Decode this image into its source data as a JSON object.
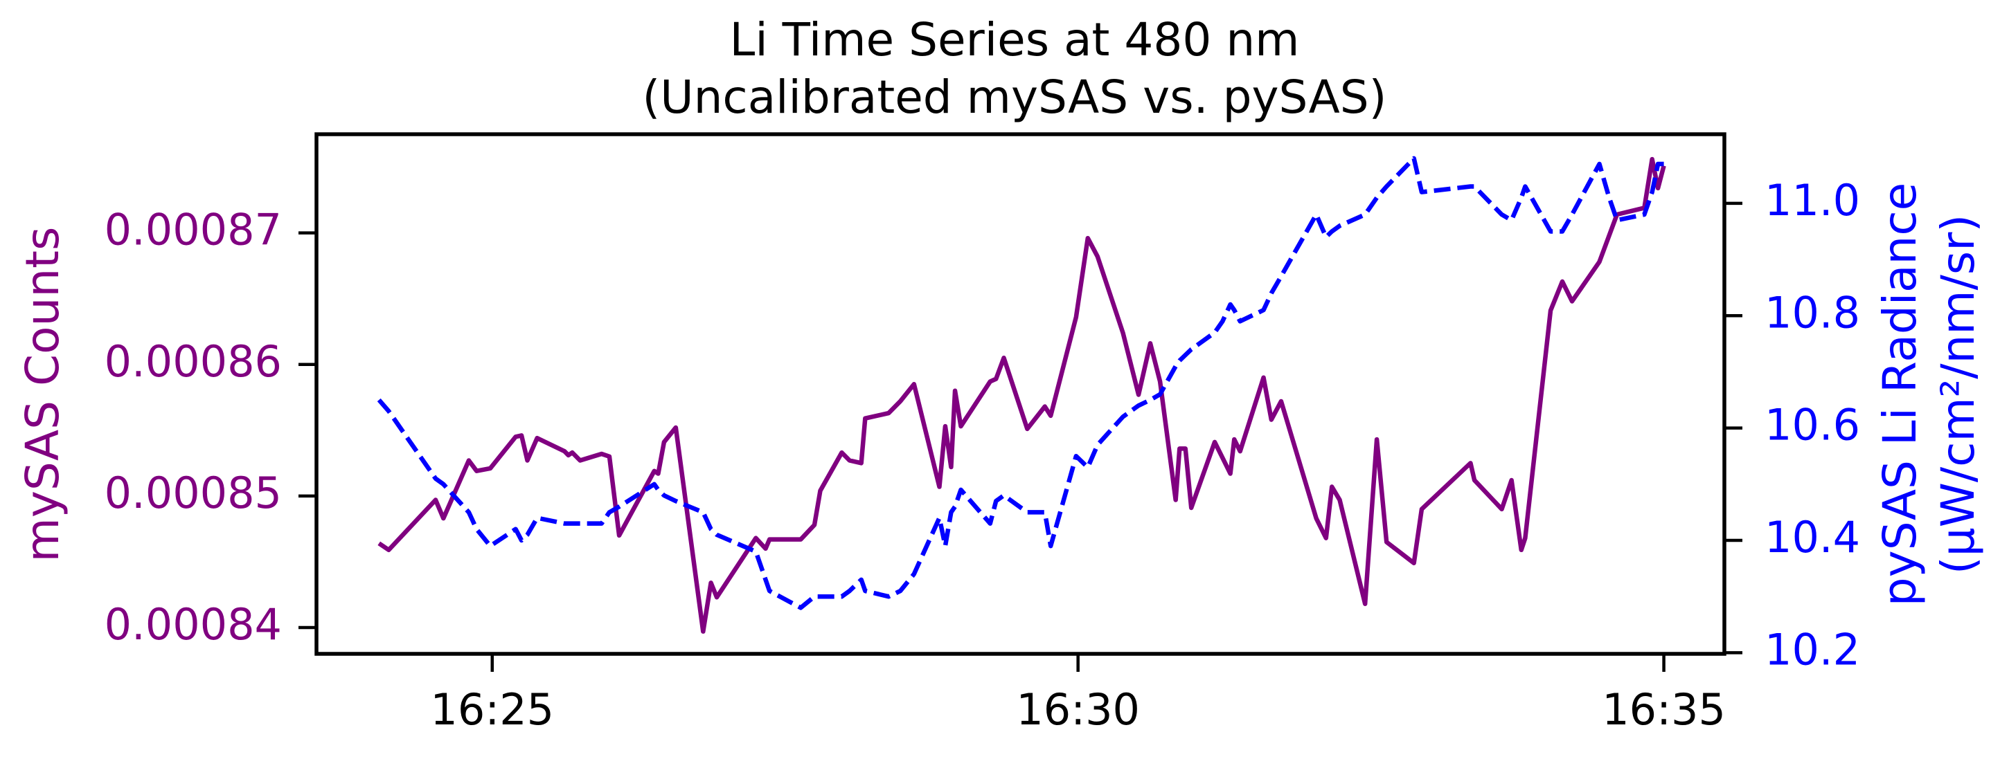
{
  "chart_data": {
    "type": "line",
    "title": "Li Time Series at 480 nm",
    "subtitle": "(Uncalibrated mySAS vs. pySAS)",
    "ylabel": "mySAS Counts",
    "y2label": [
      "pySAS Li Radiance",
      "(μW/cm²/nm/sr)"
    ],
    "x": [
      "16:24:02",
      "16:24:07",
      "16:24:31",
      "16:24:35",
      "16:24:48",
      "16:24:52",
      "16:24:59",
      "16:25:12",
      "16:25:15",
      "16:25:18",
      "16:25:23",
      "16:25:37",
      "16:25:39",
      "16:25:41",
      "16:25:45",
      "16:25:56",
      "16:26:00",
      "16:26:05",
      "16:26:23",
      "16:26:25",
      "16:26:28",
      "16:26:34",
      "16:26:48",
      "16:26:52",
      "16:26:55",
      "16:27:15",
      "16:27:20",
      "16:27:22",
      "16:27:38",
      "16:27:45",
      "16:27:48",
      "16:27:59",
      "16:28:03",
      "16:28:09",
      "16:28:11",
      "16:28:23",
      "16:28:29",
      "16:28:36",
      "16:28:49",
      "16:28:52",
      "16:28:55",
      "16:28:57",
      "16:29:00",
      "16:29:15",
      "16:29:18",
      "16:29:22",
      "16:29:34",
      "16:29:43",
      "16:29:46",
      "16:29:59",
      "16:30:05",
      "16:30:10",
      "16:30:23",
      "16:30:31",
      "16:30:37",
      "16:30:42",
      "16:30:50",
      "16:30:52",
      "16:30:55",
      "16:30:58",
      "16:31:10",
      "16:31:14",
      "16:31:18",
      "16:31:20",
      "16:31:23",
      "16:31:35",
      "16:31:39",
      "16:31:44",
      "16:32:02",
      "16:32:07",
      "16:32:10",
      "16:32:14",
      "16:32:27",
      "16:32:33",
      "16:32:38",
      "16:32:52",
      "16:32:56",
      "16:33:21",
      "16:33:23",
      "16:33:37",
      "16:33:42",
      "16:33:47",
      "16:33:49",
      "16:34:02",
      "16:34:08",
      "16:34:13",
      "16:34:27",
      "16:34:32",
      "16:34:36",
      "16:34:50",
      "16:34:54",
      "16:34:57",
      "16:35:00"
    ],
    "series": [
      {
        "color": "#800080",
        "style": "solid",
        "axis": "y",
        "values": [
          0.0008464,
          0.0008459,
          0.0008497,
          0.0008483,
          0.0008527,
          0.0008519,
          0.0008521,
          0.0008545,
          0.0008546,
          0.0008527,
          0.0008544,
          0.0008534,
          0.0008531,
          0.0008533,
          0.0008527,
          0.0008532,
          0.000853,
          0.000847,
          0.0008519,
          0.0008517,
          0.0008541,
          0.0008552,
          0.0008397,
          0.0008434,
          0.0008423,
          0.0008468,
          0.000846,
          0.0008467,
          0.0008467,
          0.0008478,
          0.0008504,
          0.0008533,
          0.0008527,
          0.0008525,
          0.0008559,
          0.0008563,
          0.0008572,
          0.0008585,
          0.0008507,
          0.0008553,
          0.0008522,
          0.000858,
          0.0008553,
          0.0008587,
          0.0008589,
          0.0008605,
          0.0008551,
          0.0008568,
          0.0008561,
          0.0008636,
          0.0008696,
          0.0008682,
          0.0008624,
          0.0008577,
          0.0008616,
          0.0008587,
          0.0008497,
          0.0008536,
          0.0008536,
          0.0008491,
          0.0008541,
          0.0008529,
          0.0008517,
          0.0008543,
          0.0008534,
          0.000859,
          0.0008558,
          0.0008572,
          0.0008483,
          0.0008468,
          0.0008507,
          0.0008497,
          0.0008418,
          0.0008543,
          0.0008465,
          0.0008449,
          0.000849,
          0.0008525,
          0.0008512,
          0.000849,
          0.0008512,
          0.0008459,
          0.0008468,
          0.0008641,
          0.0008663,
          0.0008648,
          0.0008678,
          0.0008698,
          0.0008714,
          0.0008719,
          0.0008756,
          0.0008734,
          0.0008751
        ]
      },
      {
        "color": "#0000ff",
        "style": "dashed",
        "axis": "y2",
        "values": [
          10.65,
          10.63,
          10.51,
          10.5,
          10.45,
          10.42,
          10.39,
          10.42,
          10.4,
          10.41,
          10.44,
          10.43,
          10.43,
          10.43,
          10.43,
          10.43,
          10.45,
          10.46,
          10.5,
          10.49,
          10.48,
          10.47,
          10.45,
          10.42,
          10.41,
          10.38,
          10.33,
          10.31,
          10.28,
          10.3,
          10.3,
          10.3,
          10.31,
          10.33,
          10.31,
          10.3,
          10.31,
          10.34,
          10.44,
          10.39,
          10.45,
          10.46,
          10.49,
          10.43,
          10.47,
          10.48,
          10.45,
          10.45,
          10.39,
          10.55,
          10.53,
          10.57,
          10.62,
          10.64,
          10.65,
          10.66,
          10.71,
          10.72,
          10.73,
          10.74,
          10.77,
          10.79,
          10.82,
          10.81,
          10.79,
          10.81,
          10.84,
          10.87,
          10.98,
          10.94,
          10.95,
          10.96,
          10.98,
          11.01,
          11.03,
          11.08,
          11.02,
          11.03,
          11.03,
          10.98,
          10.97,
          11.01,
          11.03,
          10.95,
          10.95,
          10.98,
          11.07,
          11.01,
          10.97,
          10.98,
          11.02,
          11.07,
          11.07
        ]
      }
    ],
    "xlim": [
      "16:23:30",
      "16:35:31"
    ],
    "xticks": [
      "16:25",
      "16:30",
      "16:35"
    ],
    "ylim": [
      0.000838,
      0.0008775
    ],
    "yticks": [
      0.00084,
      0.00085,
      0.00086,
      0.00087
    ],
    "y2lim": [
      10.198,
      11.123
    ],
    "y2ticks": [
      10.2,
      10.4,
      10.6,
      10.8,
      {
        "value": 11,
        "label": "11.0"
      }
    ],
    "grid": false
  }
}
